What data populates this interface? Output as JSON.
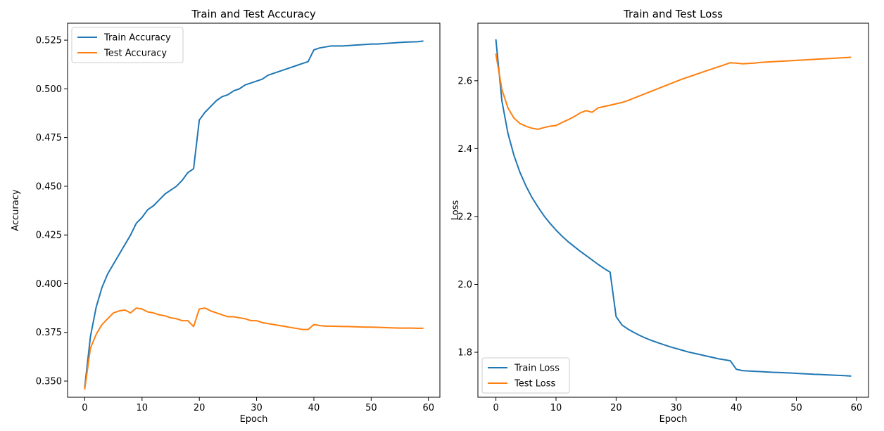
{
  "chart_data": [
    {
      "type": "line",
      "title": "Train and Test Accuracy",
      "xlabel": "Epoch",
      "ylabel": "Accuracy",
      "xlim": [
        -3,
        62
      ],
      "ylim": [
        0.3417,
        0.5337
      ],
      "xticks": [
        0,
        10,
        20,
        30,
        40,
        50,
        60
      ],
      "yticks": [
        0.35,
        0.375,
        0.4,
        0.425,
        0.45,
        0.475,
        0.5,
        0.525
      ],
      "ytick_labels": [
        "0.350",
        "0.375",
        "0.400",
        "0.425",
        "0.450",
        "0.475",
        "0.500",
        "0.525"
      ],
      "legend": "top-left",
      "grid": false,
      "series": [
        {
          "name": "Train Accuracy",
          "color": "#1f77b4",
          "x": [
            0,
            1,
            2,
            3,
            4,
            5,
            6,
            7,
            8,
            9,
            10,
            11,
            12,
            13,
            14,
            15,
            16,
            17,
            18,
            19,
            20,
            21,
            22,
            23,
            24,
            25,
            26,
            27,
            28,
            29,
            30,
            31,
            32,
            33,
            34,
            35,
            36,
            37,
            38,
            39,
            40,
            41,
            42,
            43,
            44,
            45,
            46,
            47,
            48,
            49,
            50,
            51,
            52,
            53,
            54,
            55,
            56,
            57,
            58,
            59
          ],
          "values": [
            0.347,
            0.373,
            0.388,
            0.398,
            0.405,
            0.41,
            0.415,
            0.42,
            0.425,
            0.431,
            0.434,
            0.438,
            0.44,
            0.443,
            0.446,
            0.448,
            0.45,
            0.453,
            0.457,
            0.459,
            0.484,
            0.488,
            0.491,
            0.494,
            0.496,
            0.497,
            0.499,
            0.5,
            0.502,
            0.503,
            0.504,
            0.505,
            0.507,
            0.508,
            0.509,
            0.51,
            0.511,
            0.512,
            0.513,
            0.514,
            0.52,
            0.521,
            0.5215,
            0.522,
            0.522,
            0.522,
            0.5222,
            0.5224,
            0.5226,
            0.5228,
            0.523,
            0.523,
            0.5232,
            0.5234,
            0.5236,
            0.5238,
            0.524,
            0.5241,
            0.5242,
            0.5245
          ]
        },
        {
          "name": "Test Accuracy",
          "color": "#ff7f0e",
          "x": [
            0,
            1,
            2,
            3,
            4,
            5,
            6,
            7,
            8,
            9,
            10,
            11,
            12,
            13,
            14,
            15,
            16,
            17,
            18,
            19,
            20,
            21,
            22,
            23,
            24,
            25,
            26,
            27,
            28,
            29,
            30,
            31,
            32,
            33,
            34,
            35,
            36,
            37,
            38,
            39,
            40,
            41,
            42,
            43,
            44,
            45,
            46,
            47,
            48,
            49,
            50,
            51,
            52,
            53,
            54,
            55,
            56,
            57,
            58,
            59
          ],
          "values": [
            0.346,
            0.367,
            0.374,
            0.379,
            0.382,
            0.385,
            0.386,
            0.3865,
            0.385,
            0.3875,
            0.387,
            0.3855,
            0.385,
            0.384,
            0.3835,
            0.3825,
            0.382,
            0.381,
            0.381,
            0.378,
            0.387,
            0.3875,
            0.386,
            0.385,
            0.384,
            0.383,
            0.383,
            0.3825,
            0.382,
            0.381,
            0.381,
            0.38,
            0.3795,
            0.379,
            0.3785,
            0.378,
            0.3775,
            0.377,
            0.3765,
            0.3765,
            0.379,
            0.3785,
            0.3782,
            0.3782,
            0.3781,
            0.378,
            0.378,
            0.3779,
            0.3778,
            0.3777,
            0.3777,
            0.3776,
            0.3775,
            0.3774,
            0.3773,
            0.3772,
            0.3772,
            0.3772,
            0.3771,
            0.3771
          ]
        }
      ]
    },
    {
      "type": "line",
      "title": "Train and Test Loss",
      "xlabel": "Epoch",
      "ylabel": "Loss",
      "xlim": [
        -3,
        62
      ],
      "ylim": [
        1.6675,
        2.7695
      ],
      "xticks": [
        0,
        10,
        20,
        30,
        40,
        50,
        60
      ],
      "yticks": [
        1.8,
        2.0,
        2.2,
        2.4,
        2.6
      ],
      "ytick_labels": [
        "1.8",
        "2.0",
        "2.2",
        "2.4",
        "2.6"
      ],
      "legend": "bottom-left",
      "grid": false,
      "series": [
        {
          "name": "Train Loss",
          "color": "#1f77b4",
          "x": [
            0,
            1,
            2,
            3,
            4,
            5,
            6,
            7,
            8,
            9,
            10,
            11,
            12,
            13,
            14,
            15,
            16,
            17,
            18,
            19,
            20,
            21,
            22,
            23,
            24,
            25,
            26,
            27,
            28,
            29,
            30,
            31,
            32,
            33,
            34,
            35,
            36,
            37,
            38,
            39,
            40,
            41,
            42,
            43,
            44,
            45,
            46,
            47,
            48,
            49,
            50,
            51,
            52,
            53,
            54,
            55,
            56,
            57,
            58,
            59
          ],
          "values": [
            2.72,
            2.54,
            2.445,
            2.38,
            2.33,
            2.29,
            2.256,
            2.228,
            2.202,
            2.18,
            2.16,
            2.142,
            2.126,
            2.112,
            2.098,
            2.085,
            2.072,
            2.059,
            2.047,
            2.036,
            1.905,
            1.88,
            1.868,
            1.858,
            1.849,
            1.841,
            1.834,
            1.828,
            1.822,
            1.816,
            1.811,
            1.806,
            1.801,
            1.797,
            1.793,
            1.789,
            1.785,
            1.781,
            1.778,
            1.775,
            1.75,
            1.746,
            1.745,
            1.744,
            1.743,
            1.742,
            1.741,
            1.7405,
            1.7397,
            1.739,
            1.738,
            1.737,
            1.736,
            1.735,
            1.7345,
            1.7335,
            1.7327,
            1.732,
            1.7312,
            1.73
          ]
        },
        {
          "name": "Test Loss",
          "color": "#ff7f0e",
          "x": [
            0,
            1,
            2,
            3,
            4,
            5,
            6,
            7,
            8,
            9,
            10,
            11,
            12,
            13,
            14,
            15,
            16,
            17,
            18,
            19,
            20,
            21,
            22,
            23,
            24,
            25,
            26,
            27,
            28,
            29,
            30,
            31,
            32,
            33,
            34,
            35,
            36,
            37,
            38,
            39,
            40,
            41,
            42,
            43,
            44,
            45,
            46,
            47,
            48,
            49,
            50,
            51,
            52,
            53,
            54,
            55,
            56,
            57,
            58,
            59
          ],
          "values": [
            2.678,
            2.574,
            2.52,
            2.49,
            2.474,
            2.466,
            2.46,
            2.457,
            2.462,
            2.466,
            2.468,
            2.477,
            2.485,
            2.494,
            2.505,
            2.512,
            2.507,
            2.52,
            2.524,
            2.528,
            2.532,
            2.536,
            2.542,
            2.549,
            2.556,
            2.563,
            2.57,
            2.577,
            2.584,
            2.591,
            2.598,
            2.605,
            2.611,
            2.617,
            2.623,
            2.629,
            2.635,
            2.641,
            2.647,
            2.653,
            2.652,
            2.65,
            2.651,
            2.652,
            2.654,
            2.655,
            2.656,
            2.657,
            2.658,
            2.659,
            2.66,
            2.661,
            2.662,
            2.663,
            2.664,
            2.665,
            2.666,
            2.667,
            2.668,
            2.669
          ]
        }
      ]
    }
  ]
}
